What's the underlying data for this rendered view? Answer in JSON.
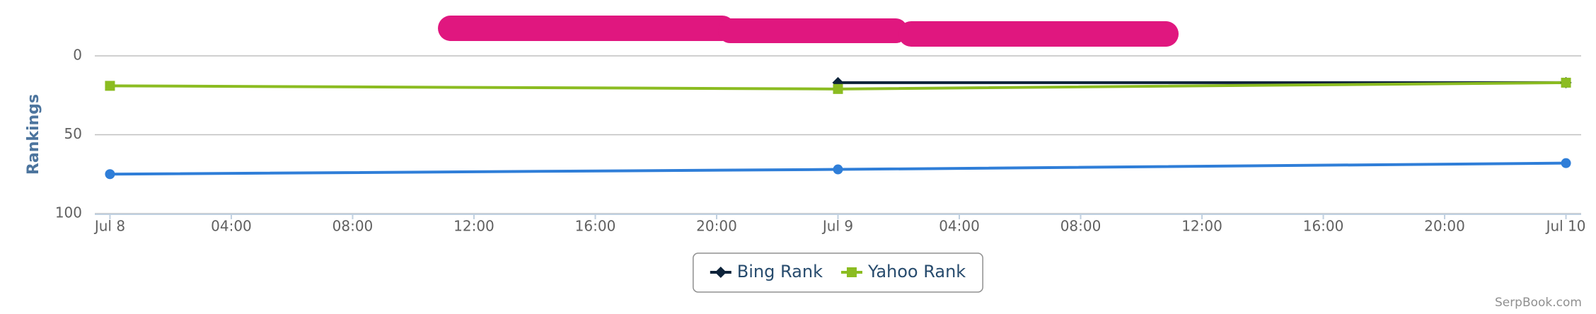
{
  "chart_data": {
    "type": "line",
    "y_label": "Rankings",
    "credit": "SerpBook.com",
    "x": [
      0,
      24,
      48
    ],
    "xlim": [
      -0.5,
      48.5
    ],
    "xticks": [
      {
        "value": 0,
        "label": "Jul 8"
      },
      {
        "value": 4,
        "label": "04:00"
      },
      {
        "value": 8,
        "label": "08:00"
      },
      {
        "value": 12,
        "label": "12:00"
      },
      {
        "value": 16,
        "label": "16:00"
      },
      {
        "value": 20,
        "label": "20:00"
      },
      {
        "value": 24,
        "label": "Jul 9"
      },
      {
        "value": 28,
        "label": "04:00"
      },
      {
        "value": 32,
        "label": "08:00"
      },
      {
        "value": 36,
        "label": "12:00"
      },
      {
        "value": 40,
        "label": "16:00"
      },
      {
        "value": 44,
        "label": "20:00"
      },
      {
        "value": 48,
        "label": "Jul 10"
      }
    ],
    "ylim": [
      100,
      0
    ],
    "yticks": [
      0,
      50,
      100
    ],
    "grid": true,
    "legend": "bottom",
    "series": [
      {
        "color": "#2f7ed8",
        "marker": "circle",
        "values": [
          75,
          72,
          68
        ]
      },
      {
        "name": "Bing Rank",
        "color": "#0d233a",
        "marker": "diamond",
        "values": [
          null,
          17,
          17
        ]
      },
      {
        "name": "Yahoo Rank",
        "color": "#8bbc21",
        "marker": "square",
        "values": [
          19,
          21,
          17
        ]
      }
    ]
  }
}
